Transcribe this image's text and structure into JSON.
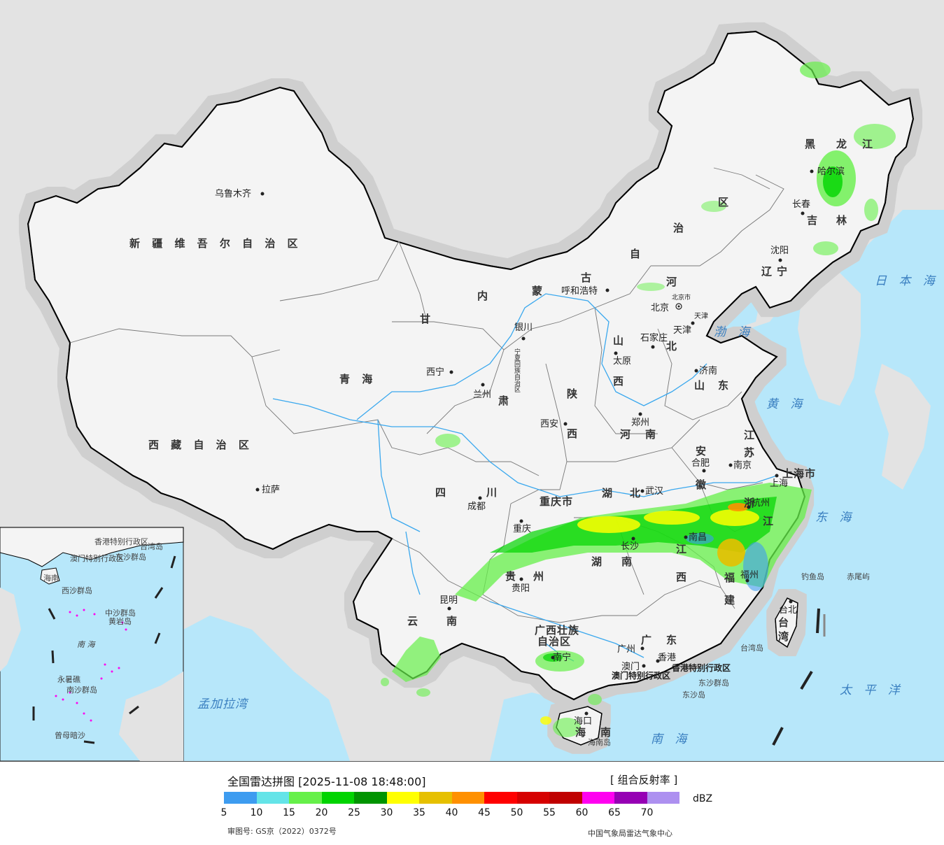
{
  "legend": {
    "title": "全国雷达拼图 [2025-11-08 18:48:00]",
    "product": "[ 组合反射率 ]",
    "unit": "dBZ",
    "ticks": [
      "5",
      "10",
      "15",
      "20",
      "25",
      "30",
      "35",
      "40",
      "45",
      "50",
      "55",
      "60",
      "65",
      "70"
    ],
    "colors": [
      "#3d9cf0",
      "#64e4e8",
      "#66f04a",
      "#00d400",
      "#009400",
      "#ffff00",
      "#e6c000",
      "#ff9000",
      "#ff0000",
      "#d60000",
      "#c00000",
      "#ff00f0",
      "#9600b4",
      "#ad90f0"
    ],
    "approval": "审图号: GS京（2022）0372号",
    "credit": "中国气象局雷达气象中心"
  },
  "map": {
    "colors": {
      "ocean": "#b7e7fa",
      "land": "#f4f4f4",
      "outside": "#e3e3e3",
      "border": "#000000",
      "river": "#3aa8ee"
    },
    "provinces": [
      "新 疆 维 吾 尔 自 治 区",
      "西 藏 自 治 区",
      "青   海",
      "甘",
      "肃",
      "内",
      "蒙",
      "古",
      "自",
      "治",
      "区",
      "黑",
      "龙",
      "江",
      "吉",
      "林",
      "辽",
      "宁",
      "河",
      "北",
      "山",
      "西",
      "陕",
      "西",
      "山",
      "东",
      "河",
      "南",
      "江",
      "苏",
      "安",
      "徽",
      "湖",
      "北",
      "四",
      "川",
      "重庆市",
      "贵",
      "州",
      "湖",
      "南",
      "江",
      "西",
      "浙",
      "江",
      "福",
      "建",
      "云",
      "南",
      "广西壮族",
      "自治区",
      "广",
      "东",
      "海",
      "南",
      "上海市",
      "台",
      "湾",
      "宁夏回族自治区",
      "北京市",
      "天津",
      "香港特别行政区",
      "澳门特别行政区"
    ],
    "cities": [
      "乌鲁木齐",
      "拉萨",
      "西宁",
      "兰州",
      "银川",
      "呼和浩特",
      "北京",
      "天津",
      "石家庄",
      "太原",
      "济南",
      "郑州",
      "西安",
      "成都",
      "重庆",
      "武汉",
      "合肥",
      "南京",
      "上海",
      "杭州",
      "南昌",
      "长沙",
      "福州",
      "台北",
      "贵阳",
      "昆明",
      "南宁",
      "广州",
      "香港",
      "澳门",
      "海口",
      "哈尔滨",
      "长春",
      "沈阳"
    ],
    "seas": [
      "日 本 海",
      "渤 海",
      "黄 海",
      "东 海",
      "南 海",
      "太 平 洋",
      "孟加拉湾"
    ],
    "islands": [
      "钓鱼岛",
      "赤尾屿",
      "台湾岛",
      "东沙群岛",
      "东沙岛",
      "海南岛"
    ],
    "inset": [
      "南 海",
      "中沙群岛",
      "西沙群岛",
      "南沙群岛",
      "黄岩岛",
      "永暑礁",
      "曾母暗沙",
      "香港特别行政区",
      "澳门特别行政区",
      "海南",
      "东沙群岛",
      "台湾岛"
    ]
  }
}
